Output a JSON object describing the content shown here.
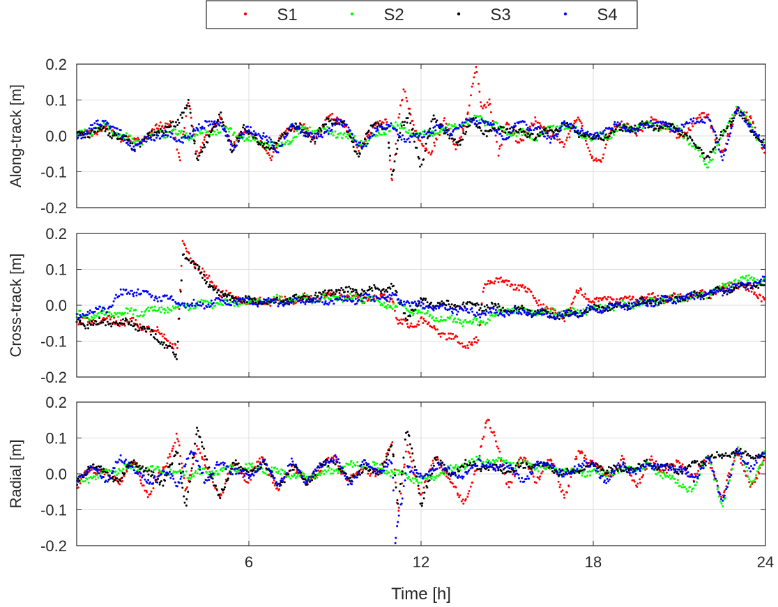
{
  "legend": {
    "entries": [
      {
        "label": "S1",
        "color": "#ff0000"
      },
      {
        "label": "S2",
        "color": "#00ff00"
      },
      {
        "label": "S3",
        "color": "#000000"
      },
      {
        "label": "S4",
        "color": "#0000ff"
      }
    ]
  },
  "xaxis": {
    "label": "Time [h]",
    "ticks": [
      "6",
      "12",
      "18",
      "24"
    ]
  },
  "chart_data": [
    {
      "type": "scatter",
      "ylabel": "Along-track [m]",
      "xlim": [
        0,
        24
      ],
      "ylim": [
        -0.2,
        0.2
      ],
      "yticks": [
        "0.2",
        "0.1",
        "0.0",
        "-0.1",
        "-0.2"
      ],
      "grid": true,
      "series": [
        {
          "name": "S1",
          "color": "#ff0000",
          "x": [
            0,
            1,
            2,
            3,
            3.3,
            3.6,
            3.9,
            4.2,
            4.6,
            5,
            5.4,
            5.8,
            6.3,
            6.8,
            7.3,
            7.8,
            8.3,
            8.8,
            9.3,
            9.8,
            10.3,
            10.8,
            11,
            11.2,
            11.4,
            11.8,
            12.3,
            12.8,
            13.2,
            13.6,
            13.9,
            14.1,
            14.4,
            14.7,
            15,
            15.5,
            16,
            16.5,
            17,
            17.5,
            18,
            18.3,
            18.6,
            19,
            19.5,
            20,
            20.5,
            21,
            21.5,
            22,
            22.5,
            23,
            23.5,
            24
          ],
          "y": [
            0.0,
            0.02,
            -0.02,
            0.03,
            0.04,
            -0.07,
            0.1,
            -0.05,
            0.0,
            0.06,
            -0.03,
            0.02,
            -0.01,
            -0.06,
            0.02,
            0.03,
            -0.01,
            0.05,
            0.04,
            -0.04,
            0.02,
            0.04,
            -0.13,
            0.05,
            0.12,
            0.02,
            -0.06,
            0.05,
            -0.04,
            0.05,
            0.19,
            0.08,
            0.1,
            -0.05,
            0.03,
            -0.02,
            0.05,
            0.0,
            -0.02,
            0.05,
            -0.06,
            -0.08,
            0.02,
            0.03,
            0.01,
            0.04,
            0.03,
            -0.01,
            0.04,
            0.06,
            -0.06,
            0.08,
            0.04,
            -0.04
          ]
        },
        {
          "name": "S2",
          "color": "#00ff00",
          "x": [
            0,
            1,
            2,
            3,
            4,
            5,
            6,
            7,
            8,
            9,
            10,
            11,
            12,
            13,
            14,
            15,
            16,
            17,
            18,
            19,
            20,
            21,
            22,
            23,
            24
          ],
          "y": [
            0.0,
            0.03,
            -0.02,
            0.01,
            0.0,
            0.02,
            -0.01,
            -0.03,
            0.02,
            0.01,
            -0.02,
            0.03,
            0.0,
            0.02,
            0.05,
            0.01,
            0.0,
            0.03,
            -0.01,
            0.02,
            0.03,
            0.02,
            -0.08,
            0.08,
            -0.03
          ]
        },
        {
          "name": "S3",
          "color": "#000000",
          "x": [
            0,
            1,
            2,
            3,
            3.5,
            3.9,
            4.2,
            4.6,
            5,
            5.4,
            5.8,
            6.3,
            6.8,
            7.3,
            7.8,
            8.3,
            8.8,
            9.3,
            9.8,
            10.3,
            10.8,
            11,
            11.3,
            11.6,
            12,
            12.4,
            12.8,
            13.3,
            13.8,
            14.3,
            15,
            16,
            17,
            18,
            19,
            20,
            21,
            22,
            23,
            24
          ],
          "y": [
            0.0,
            0.02,
            -0.03,
            0.02,
            0.03,
            0.1,
            -0.08,
            0.0,
            0.06,
            -0.04,
            0.02,
            -0.01,
            -0.04,
            0.02,
            0.02,
            -0.01,
            0.05,
            0.03,
            -0.05,
            0.03,
            0.03,
            -0.12,
            0.03,
            0.06,
            -0.1,
            0.06,
            0.01,
            -0.02,
            0.04,
            0.01,
            0.02,
            0.0,
            0.03,
            -0.01,
            0.02,
            0.03,
            0.02,
            -0.06,
            0.07,
            -0.03
          ]
        },
        {
          "name": "S4",
          "color": "#0000ff",
          "x": [
            0,
            1,
            2,
            3,
            3.5,
            4,
            4.5,
            5,
            5.5,
            6,
            6.5,
            7,
            7.5,
            8,
            8.5,
            9,
            9.5,
            10,
            10.5,
            11,
            11.5,
            12,
            12.5,
            13,
            13.5,
            14,
            14.5,
            15,
            15.5,
            16,
            16.5,
            17,
            17.5,
            18,
            18.5,
            19,
            19.5,
            20,
            20.5,
            21,
            21.5,
            22,
            22.5,
            23,
            23.5,
            24
          ],
          "y": [
            0.0,
            0.04,
            -0.03,
            0.01,
            -0.01,
            0.0,
            0.04,
            0.03,
            -0.03,
            0.02,
            0.0,
            -0.04,
            0.03,
            0.01,
            -0.01,
            0.04,
            0.02,
            -0.04,
            0.03,
            0.02,
            -0.01,
            0.0,
            0.02,
            0.01,
            0.03,
            0.05,
            0.02,
            0.0,
            0.04,
            0.02,
            -0.01,
            0.03,
            0.02,
            0.0,
            0.02,
            0.03,
            0.01,
            0.04,
            0.03,
            0.02,
            0.04,
            0.05,
            -0.06,
            0.07,
            0.03,
            -0.04
          ]
        }
      ]
    },
    {
      "type": "scatter",
      "ylabel": "Cross-track [m]",
      "xlim": [
        0,
        24
      ],
      "ylim": [
        -0.2,
        0.2
      ],
      "yticks": [
        "0.2",
        "0.1",
        "0.0",
        "-0.1",
        "-0.2"
      ],
      "grid": true,
      "series": [
        {
          "name": "S1",
          "color": "#ff0000",
          "x": [
            0,
            1,
            2,
            3,
            3.5,
            3.7,
            4,
            4.5,
            5,
            5.5,
            6,
            7,
            8,
            9,
            10,
            11,
            11.2,
            11.6,
            12,
            12.5,
            13,
            13.5,
            14,
            14.2,
            14.5,
            15,
            15.5,
            16,
            16.5,
            17,
            17.5,
            18,
            18.5,
            19,
            19.5,
            20,
            21,
            22,
            23,
            24
          ],
          "y": [
            -0.05,
            -0.04,
            -0.05,
            -0.08,
            -0.12,
            0.18,
            0.13,
            0.08,
            0.04,
            0.02,
            0.01,
            0.01,
            0.02,
            0.03,
            0.02,
            0.02,
            -0.05,
            -0.06,
            -0.04,
            -0.07,
            -0.09,
            -0.11,
            -0.1,
            0.06,
            0.07,
            0.06,
            0.05,
            0.02,
            -0.02,
            -0.03,
            0.04,
            0.01,
            0.02,
            0.01,
            0.02,
            0.02,
            0.02,
            0.03,
            0.06,
            0.02
          ]
        },
        {
          "name": "S2",
          "color": "#00ff00",
          "x": [
            0,
            2,
            4,
            6,
            8,
            10,
            11,
            12,
            13,
            14,
            15,
            16,
            17,
            18,
            19,
            20,
            21,
            22,
            23,
            24
          ],
          "y": [
            -0.03,
            -0.02,
            0.0,
            0.01,
            0.02,
            0.02,
            0.0,
            -0.02,
            -0.04,
            -0.05,
            -0.01,
            -0.02,
            -0.02,
            -0.01,
            0.0,
            0.01,
            0.02,
            0.03,
            0.07,
            0.07
          ]
        },
        {
          "name": "S3",
          "color": "#000000",
          "x": [
            0,
            1,
            2,
            3,
            3.5,
            3.7,
            4,
            4.5,
            5,
            5.5,
            6,
            7,
            8,
            9,
            10,
            11,
            11.5,
            12,
            13,
            14,
            15,
            16,
            17,
            18,
            19,
            20,
            21,
            22,
            23,
            24
          ],
          "y": [
            -0.05,
            -0.05,
            -0.05,
            -0.1,
            -0.15,
            0.14,
            0.12,
            0.07,
            0.03,
            0.02,
            0.01,
            0.01,
            0.02,
            0.04,
            0.04,
            0.05,
            -0.03,
            0.01,
            0.0,
            0.0,
            -0.01,
            -0.02,
            -0.03,
            -0.01,
            0.0,
            0.01,
            0.02,
            0.03,
            0.05,
            0.06
          ]
        },
        {
          "name": "S4",
          "color": "#0000ff",
          "x": [
            0,
            0.5,
            1,
            1.5,
            2,
            3,
            4,
            5,
            6,
            7,
            8,
            9,
            10,
            11,
            12,
            13,
            14,
            15,
            16,
            17,
            18,
            19,
            20,
            21,
            22,
            23,
            24
          ],
          "y": [
            -0.03,
            -0.02,
            -0.01,
            0.03,
            0.04,
            0.02,
            0.0,
            0.01,
            0.01,
            0.01,
            0.01,
            0.01,
            0.02,
            0.02,
            0.0,
            -0.01,
            -0.02,
            -0.02,
            -0.02,
            -0.03,
            -0.01,
            0.0,
            0.01,
            0.02,
            0.03,
            0.05,
            0.07
          ]
        }
      ]
    },
    {
      "type": "scatter",
      "ylabel": "Radial [m]",
      "xlim": [
        0,
        24
      ],
      "ylim": [
        -0.2,
        0.2
      ],
      "yticks": [
        "0.2",
        "0.1",
        "0.0",
        "-0.1",
        "-0.2"
      ],
      "grid": true,
      "series": [
        {
          "name": "S1",
          "color": "#ff0000",
          "x": [
            0,
            0.5,
            1,
            1.5,
            2,
            2.5,
            3,
            3.5,
            3.8,
            4.2,
            4.6,
            5,
            5.5,
            6,
            6.5,
            7,
            7.5,
            8,
            8.5,
            9,
            9.5,
            10,
            10.5,
            11,
            11.2,
            11.5,
            12,
            12.5,
            13,
            13.5,
            14,
            14.3,
            14.6,
            15,
            15.5,
            16,
            16.5,
            17,
            17.5,
            18,
            18.5,
            19,
            19.5,
            20,
            20.5,
            21,
            21.5,
            22,
            22.5,
            23,
            23.5,
            24
          ],
          "y": [
            -0.04,
            0.02,
            0.0,
            -0.02,
            0.03,
            -0.06,
            0.01,
            0.11,
            -0.05,
            0.08,
            0.0,
            -0.06,
            0.03,
            -0.02,
            0.05,
            -0.05,
            0.03,
            -0.03,
            0.02,
            0.04,
            -0.02,
            0.02,
            -0.01,
            0.1,
            -0.12,
            0.08,
            -0.06,
            0.05,
            -0.02,
            -0.08,
            0.03,
            0.16,
            0.1,
            -0.04,
            0.05,
            -0.02,
            0.04,
            -0.06,
            0.06,
            0.03,
            -0.01,
            0.04,
            -0.03,
            0.04,
            0.01,
            0.03,
            -0.01,
            0.05,
            -0.07,
            0.07,
            -0.04,
            0.05
          ]
        },
        {
          "name": "S2",
          "color": "#00ff00",
          "x": [
            0,
            2,
            4,
            6,
            8,
            10,
            12,
            14,
            16,
            18,
            20,
            21.5,
            22,
            22.5,
            23,
            23.5,
            24
          ],
          "y": [
            -0.02,
            0.02,
            0.0,
            0.02,
            -0.01,
            0.03,
            -0.02,
            0.04,
            0.02,
            0.0,
            0.02,
            -0.05,
            0.06,
            -0.1,
            0.08,
            -0.03,
            0.06
          ]
        },
        {
          "name": "S3",
          "color": "#000000",
          "x": [
            0,
            0.5,
            1,
            1.5,
            2,
            2.5,
            3,
            3.5,
            3.8,
            4.2,
            4.6,
            5,
            5.5,
            6,
            6.5,
            7,
            7.5,
            8,
            8.5,
            9,
            9.5,
            10,
            10.5,
            11,
            11.2,
            11.5,
            11.8,
            12,
            12.5,
            13,
            13.5,
            14,
            15,
            16,
            17,
            18,
            19,
            20,
            21,
            22,
            23,
            24
          ],
          "y": [
            -0.03,
            0.03,
            0.0,
            -0.02,
            0.04,
            0.0,
            -0.02,
            0.06,
            -0.09,
            0.12,
            0.02,
            -0.07,
            0.04,
            -0.01,
            0.04,
            -0.04,
            0.02,
            -0.02,
            0.02,
            0.04,
            -0.02,
            0.02,
            0.0,
            0.08,
            -0.1,
            0.14,
            0.02,
            -0.1,
            0.05,
            -0.01,
            0.03,
            0.02,
            0.01,
            0.03,
            0.0,
            0.02,
            0.01,
            0.03,
            0.01,
            0.04,
            0.06,
            0.05
          ]
        },
        {
          "name": "S4",
          "color": "#0000ff",
          "x": [
            0,
            0.5,
            1,
            1.5,
            2,
            2.5,
            3,
            3.5,
            4,
            4.5,
            5,
            5.5,
            6,
            6.5,
            7,
            7.5,
            8,
            8.5,
            9,
            9.5,
            10,
            10.5,
            11,
            11.1,
            11.5,
            12,
            12.5,
            13,
            13.5,
            14,
            14.5,
            15,
            15.5,
            16,
            16.5,
            17,
            17.5,
            18,
            18.5,
            19,
            19.5,
            20,
            20.5,
            21,
            21.5,
            22,
            22.5,
            23,
            23.5,
            24
          ],
          "y": [
            -0.02,
            0.02,
            -0.02,
            0.04,
            0.02,
            -0.03,
            0.01,
            -0.03,
            0.07,
            -0.02,
            0.03,
            0.01,
            -0.01,
            0.04,
            -0.03,
            0.03,
            -0.02,
            0.02,
            0.05,
            -0.03,
            0.03,
            0.01,
            0.03,
            -0.19,
            0.02,
            -0.01,
            0.02,
            0.01,
            -0.01,
            0.04,
            0.01,
            0.03,
            -0.02,
            0.02,
            0.03,
            -0.01,
            0.03,
            0.02,
            -0.02,
            0.03,
            0.0,
            0.03,
            0.01,
            0.02,
            -0.02,
            0.05,
            -0.08,
            0.06,
            0.02,
            0.06
          ]
        }
      ]
    }
  ]
}
